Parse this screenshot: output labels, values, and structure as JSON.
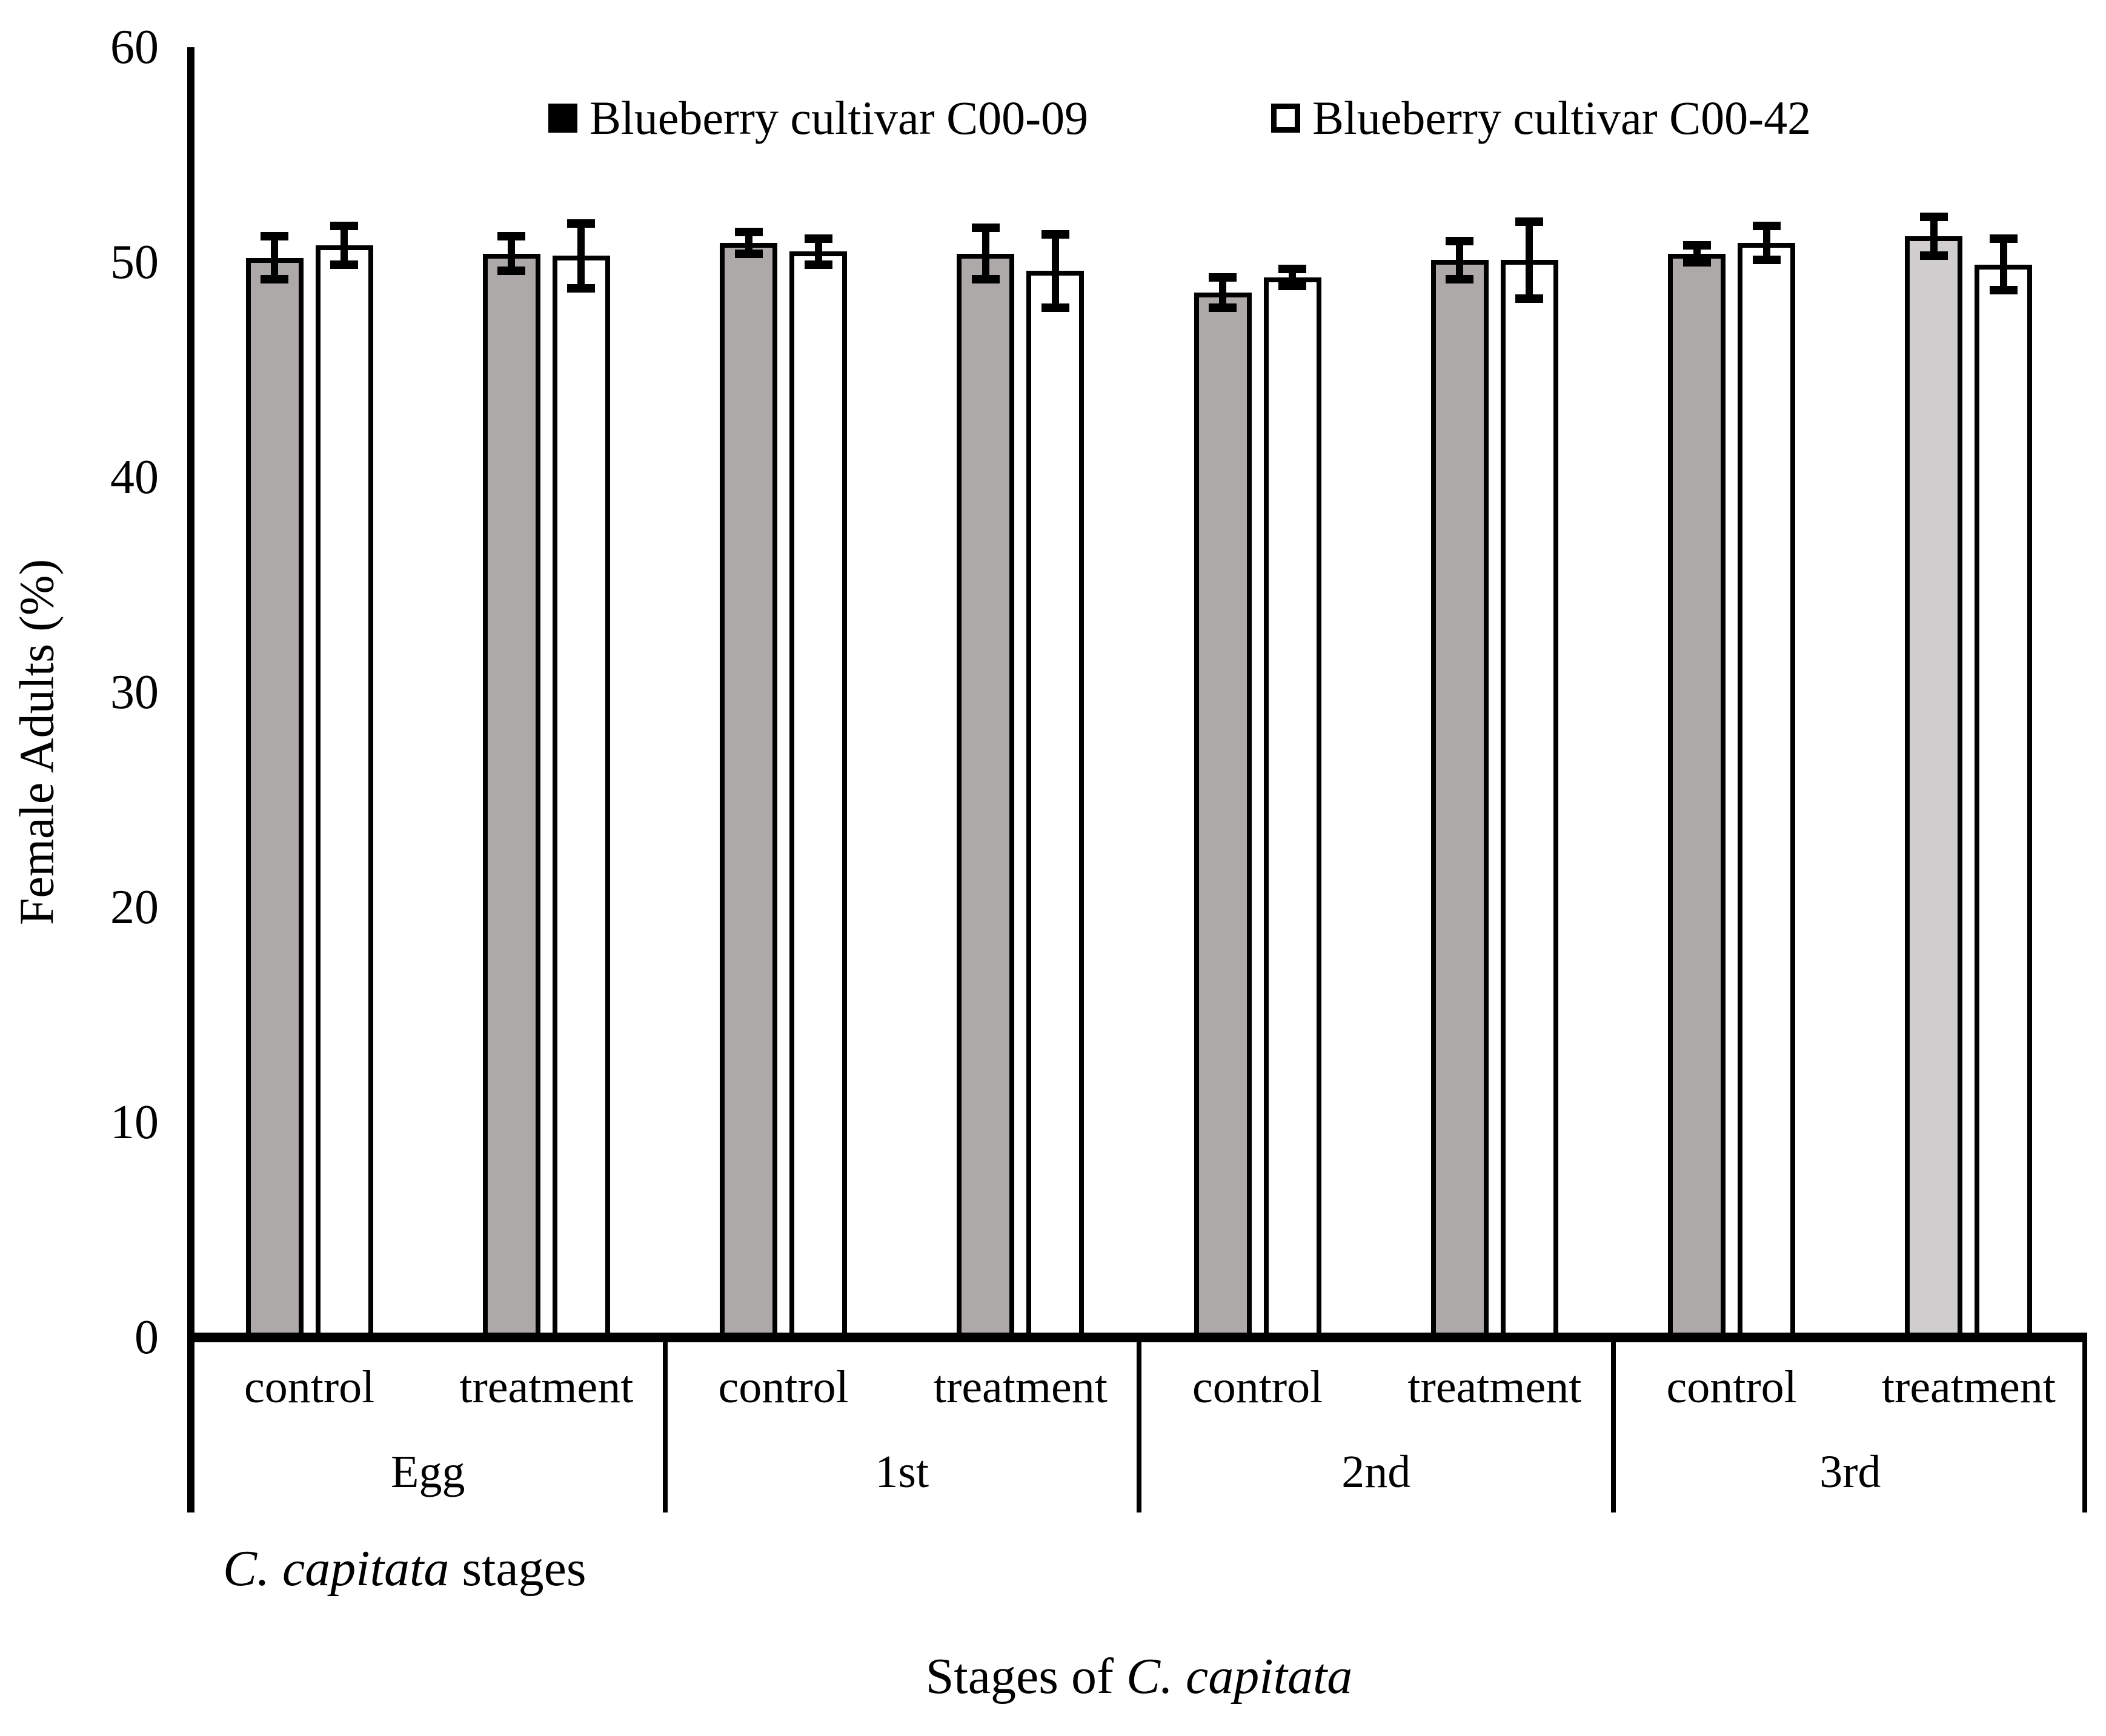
{
  "figure": {
    "caption_italic": "C. capitata",
    "caption_rest": " stages",
    "xtitle_prefix": "Stages of ",
    "xtitle_italic": "C. capitata"
  },
  "chart_data": {
    "type": "bar",
    "title": "",
    "ylabel": "Female Adults (%)",
    "xlabel": "Stages of C. capitata",
    "ylim": [
      0,
      60
    ],
    "yticks": [
      0,
      10,
      20,
      30,
      40,
      50,
      60
    ],
    "grid": false,
    "legend_position": "top",
    "series_names": [
      "Blueberry cultivar C00-09",
      "Blueberry cultivar C00-42"
    ],
    "series_colors": [
      "#ADA9A8",
      "#FFFFFF"
    ],
    "cluster_labels": [
      "control",
      "treatment"
    ],
    "groups": [
      {
        "stage": "Egg",
        "clusters": [
          {
            "label": "control",
            "bars": [
              {
                "series": "Blueberry cultivar C00-09",
                "value": 50.2,
                "error": 1.0,
                "fill": "#ADA9A8"
              },
              {
                "series": "Blueberry cultivar C00-42",
                "value": 50.8,
                "error": 0.9,
                "fill": "#FFFFFF"
              }
            ]
          },
          {
            "label": "treatment",
            "bars": [
              {
                "series": "Blueberry cultivar C00-09",
                "value": 50.4,
                "error": 0.8,
                "fill": "#ADA9A8"
              },
              {
                "series": "Blueberry cultivar C00-42",
                "value": 50.3,
                "error": 1.5,
                "fill": "#FFFFFF"
              }
            ]
          }
        ]
      },
      {
        "stage": "1st",
        "clusters": [
          {
            "label": "control",
            "bars": [
              {
                "series": "Blueberry cultivar C00-09",
                "value": 50.9,
                "error": 0.5,
                "fill": "#ADA9A8"
              },
              {
                "series": "Blueberry cultivar C00-42",
                "value": 50.5,
                "error": 0.6,
                "fill": "#FFFFFF"
              }
            ]
          },
          {
            "label": "treatment",
            "bars": [
              {
                "series": "Blueberry cultivar C00-09",
                "value": 50.4,
                "error": 1.2,
                "fill": "#ADA9A8"
              },
              {
                "series": "Blueberry cultivar C00-42",
                "value": 49.6,
                "error": 1.7,
                "fill": "#FFFFFF"
              }
            ]
          }
        ]
      },
      {
        "stage": "2nd",
        "clusters": [
          {
            "label": "control",
            "bars": [
              {
                "series": "Blueberry cultivar C00-09",
                "value": 48.6,
                "error": 0.7,
                "fill": "#ADA9A8"
              },
              {
                "series": "Blueberry cultivar C00-42",
                "value": 49.3,
                "error": 0.4,
                "fill": "#FFFFFF"
              }
            ]
          },
          {
            "label": "treatment",
            "bars": [
              {
                "series": "Blueberry cultivar C00-09",
                "value": 50.1,
                "error": 0.9,
                "fill": "#ADA9A8"
              },
              {
                "series": "Blueberry cultivar C00-42",
                "value": 50.1,
                "error": 1.8,
                "fill": "#FFFFFF"
              }
            ]
          }
        ]
      },
      {
        "stage": "3rd",
        "clusters": [
          {
            "label": "control",
            "bars": [
              {
                "series": "Blueberry cultivar C00-09",
                "value": 50.4,
                "error": 0.4,
                "fill": "#ADA9A8"
              },
              {
                "series": "Blueberry cultivar C00-42",
                "value": 50.9,
                "error": 0.8,
                "fill": "#FFFFFF"
              }
            ]
          },
          {
            "label": "treatment",
            "bars": [
              {
                "series": "Blueberry cultivar C00-09",
                "value": 51.2,
                "error": 0.9,
                "fill": "#D0CECE"
              },
              {
                "series": "Blueberry cultivar C00-42",
                "value": 49.9,
                "error": 1.2,
                "fill": "#FFFFFF"
              }
            ]
          }
        ]
      }
    ]
  }
}
